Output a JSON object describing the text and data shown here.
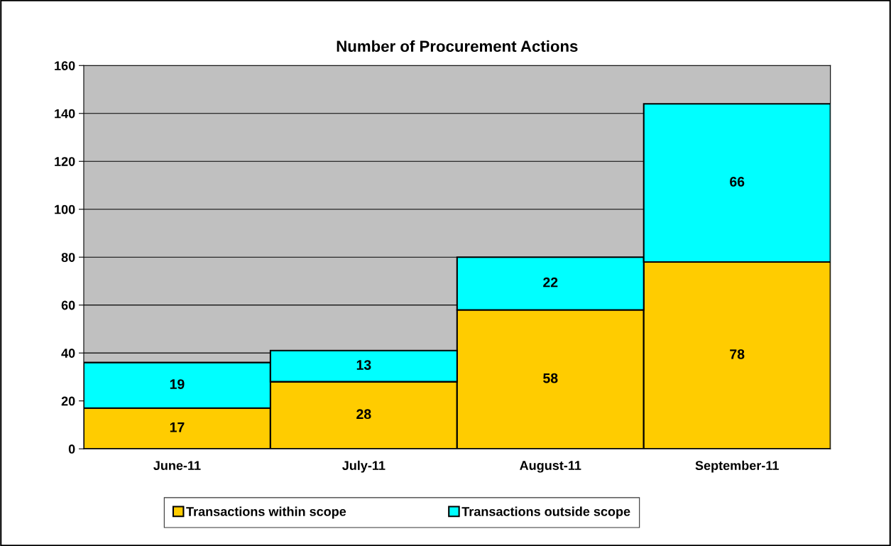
{
  "chart_data": {
    "type": "bar",
    "title": "Number of Procurement Actions",
    "categories": [
      "June-11",
      "July-11",
      "August-11",
      "September-11"
    ],
    "series": [
      {
        "name": "Transactions within scope",
        "color": "#ffcc00",
        "values": [
          17,
          28,
          58,
          78
        ]
      },
      {
        "name": "Transactions outside scope",
        "color": "#00ffff",
        "values": [
          19,
          13,
          22,
          66
        ]
      }
    ],
    "stacked": true,
    "ylim": [
      0,
      160
    ],
    "yticks": [
      0,
      20,
      40,
      60,
      80,
      100,
      120,
      140,
      160
    ],
    "grid": "y",
    "legend": "bottom",
    "data_labels": true
  }
}
